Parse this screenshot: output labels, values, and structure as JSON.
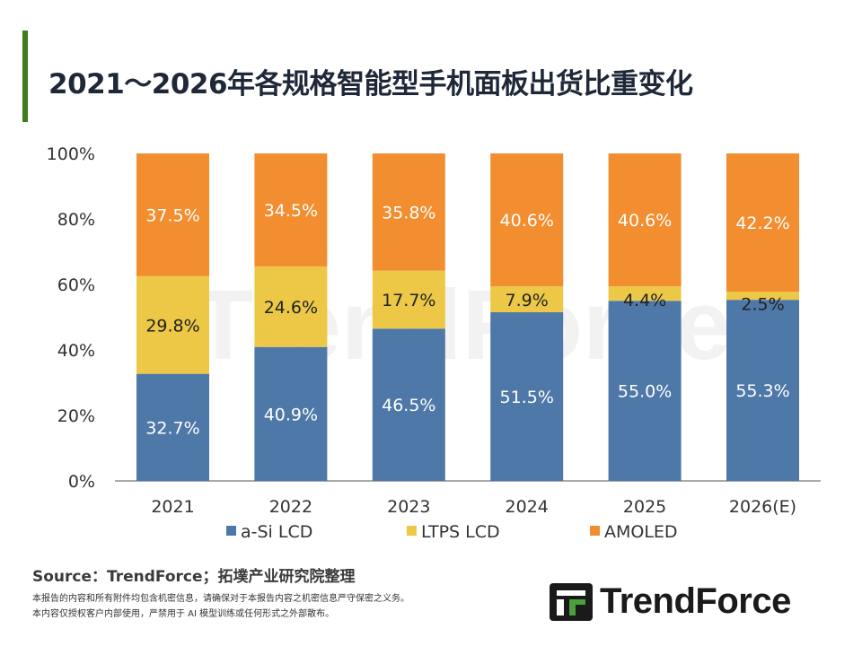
{
  "title": "2021～2026年各规格智能型手机面板出货比重变化",
  "footer": {
    "source": "Source：TrendForce；拓墣产业研究院整理",
    "note1": "本报告的内容和所有附件均包含机密信息，请确保对于本报告内容之机密信息严守保密之义务。",
    "note2": "本内容仅授权客户内部使用，严禁用于 AI 模型训练或任何形式之外部散布。",
    "logo": "TrendForce"
  },
  "watermark": "TrendForce",
  "chart_data": {
    "type": "bar",
    "stacked": true,
    "categories": [
      "2021",
      "2022",
      "2023",
      "2024",
      "2025",
      "2026(E)"
    ],
    "series": [
      {
        "name": "a-Si LCD",
        "color": "#4e78a8",
        "values": [
          32.7,
          40.9,
          46.5,
          51.5,
          55.0,
          55.3
        ],
        "labels": [
          "32.7%",
          "40.9%",
          "46.5%",
          "51.5%",
          "55.0%",
          "55.3%"
        ]
      },
      {
        "name": "LTPS LCD",
        "color": "#ecc846",
        "values": [
          29.8,
          24.6,
          17.7,
          7.9,
          4.4,
          2.5
        ],
        "labels": [
          "29.8%",
          "24.6%",
          "17.7%",
          "7.9%",
          "4.4%",
          "2.5%"
        ]
      },
      {
        "name": "AMOLED",
        "color": "#f28e2f",
        "values": [
          37.5,
          34.5,
          35.8,
          40.6,
          40.6,
          42.2
        ],
        "labels": [
          "37.5%",
          "34.5%",
          "35.8%",
          "40.6%",
          "40.6%",
          "42.2%"
        ]
      }
    ],
    "ylim": [
      0,
      100
    ],
    "yticks": [
      "0%",
      "20%",
      "40%",
      "60%",
      "80%",
      "100%"
    ],
    "grid": false,
    "legend": "bottom"
  }
}
